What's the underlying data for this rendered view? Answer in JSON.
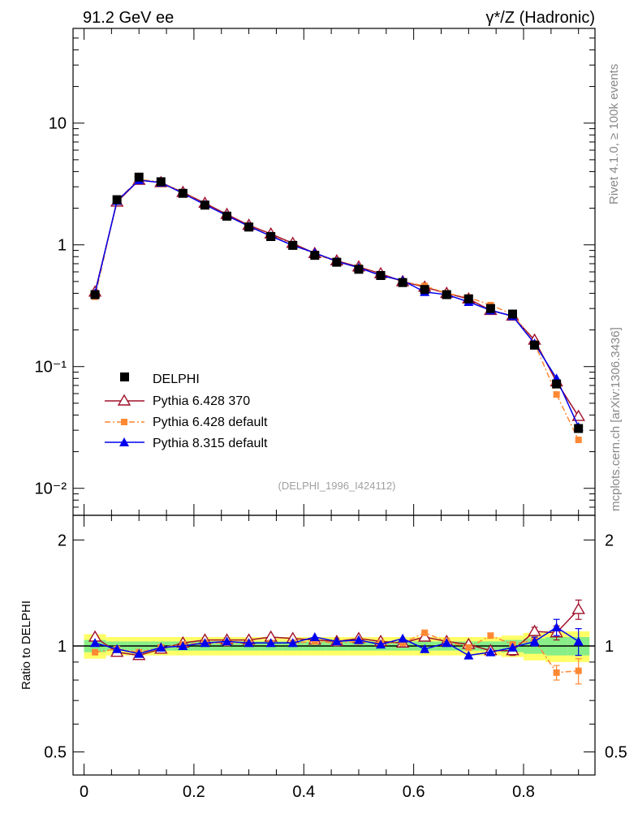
{
  "header": {
    "left_title": "91.2 GeV ee",
    "right_title": "γ*/Z (Hadronic)"
  },
  "side": {
    "rivet": "Rivet 4.1.0, ≥ 100k events",
    "mcplots": "mcplots.cern.ch [arXiv:1306.3436]"
  },
  "analysis_ref": "(DELPHI_1996_I424112)",
  "ratio_ylabel": "Ratio to DELPHI",
  "colors": {
    "data": "#000000",
    "py6_370": "#a0102a",
    "py6_default": "#ff8833",
    "py8_default": "#0000ee",
    "band_inner": "#88ee88",
    "band_outer": "#ffff66"
  },
  "chart_data": [
    {
      "type": "line",
      "panel": "main",
      "yscale": "log",
      "xlim": [
        -0.02,
        0.93
      ],
      "ylim": [
        0.006,
        60
      ],
      "y_ticks": [
        {
          "value": 10,
          "label": "10"
        },
        {
          "value": 1,
          "label": "1"
        },
        {
          "value": 0.1,
          "label": "10⁻¹"
        },
        {
          "value": 0.01,
          "label": "10⁻²"
        }
      ],
      "x": [
        0.02,
        0.06,
        0.1,
        0.14,
        0.18,
        0.22,
        0.26,
        0.3,
        0.34,
        0.38,
        0.42,
        0.46,
        0.5,
        0.54,
        0.58,
        0.62,
        0.66,
        0.7,
        0.74,
        0.78,
        0.82,
        0.86,
        0.9
      ],
      "series": [
        {
          "name": "DELPHI",
          "key": "data",
          "marker": "square",
          "values": [
            0.39,
            2.35,
            3.6,
            3.3,
            2.65,
            2.12,
            1.72,
            1.4,
            1.17,
            0.99,
            0.82,
            0.72,
            0.63,
            0.56,
            0.49,
            0.43,
            0.39,
            0.36,
            0.3,
            0.27,
            0.15,
            0.072,
            0.031
          ]
        },
        {
          "name": "Pythia 6.428 370",
          "key": "py6_370",
          "marker": "open-triangle",
          "dash": "",
          "values": [
            0.41,
            2.25,
            3.4,
            3.25,
            2.7,
            2.2,
            1.78,
            1.45,
            1.23,
            1.03,
            0.85,
            0.74,
            0.66,
            0.58,
            0.5,
            0.45,
            0.4,
            0.36,
            0.29,
            0.26,
            0.165,
            0.075,
            0.039
          ]
        },
        {
          "name": "Pythia 6.428 default",
          "key": "py6_default",
          "marker": "filled-square-small",
          "dash": "7,3,2,3",
          "values": [
            0.375,
            2.3,
            3.45,
            3.28,
            2.68,
            2.15,
            1.74,
            1.42,
            1.19,
            1.01,
            0.84,
            0.73,
            0.65,
            0.57,
            0.5,
            0.46,
            0.4,
            0.37,
            0.32,
            0.27,
            0.155,
            0.059,
            0.025
          ]
        },
        {
          "name": "Pythia 8.315 default",
          "key": "py8_default",
          "marker": "filled-triangle",
          "dash": "",
          "values": [
            0.4,
            2.3,
            3.4,
            3.25,
            2.65,
            2.14,
            1.74,
            1.42,
            1.18,
            0.99,
            0.86,
            0.73,
            0.65,
            0.56,
            0.51,
            0.41,
            0.39,
            0.34,
            0.29,
            0.26,
            0.155,
            0.08,
            0.032
          ]
        }
      ]
    },
    {
      "type": "line",
      "panel": "ratio",
      "yscale": "log",
      "xlabel": "",
      "ylabel": "Ratio to DELPHI",
      "xlim": [
        -0.02,
        0.93
      ],
      "ylim": [
        0.43,
        2.35
      ],
      "x_ticks": [
        {
          "value": 0,
          "label": "0"
        },
        {
          "value": 0.2,
          "label": "0.2"
        },
        {
          "value": 0.4,
          "label": "0.4"
        },
        {
          "value": 0.6,
          "label": "0.6"
        },
        {
          "value": 0.8,
          "label": "0.8"
        }
      ],
      "y_ticks": [
        {
          "value": 2,
          "label": "2"
        },
        {
          "value": 1,
          "label": "1"
        },
        {
          "value": 0.5,
          "label": "0.5"
        }
      ],
      "x": [
        0.02,
        0.06,
        0.1,
        0.14,
        0.18,
        0.22,
        0.26,
        0.3,
        0.34,
        0.38,
        0.42,
        0.46,
        0.5,
        0.54,
        0.58,
        0.62,
        0.66,
        0.7,
        0.74,
        0.78,
        0.82,
        0.86,
        0.9
      ],
      "band_inner": [
        0.04,
        0.03,
        0.03,
        0.03,
        0.03,
        0.03,
        0.03,
        0.03,
        0.03,
        0.03,
        0.03,
        0.03,
        0.03,
        0.03,
        0.03,
        0.03,
        0.03,
        0.03,
        0.03,
        0.04,
        0.05,
        0.06,
        0.06
      ],
      "band_outer": [
        0.08,
        0.06,
        0.06,
        0.06,
        0.06,
        0.06,
        0.06,
        0.06,
        0.06,
        0.06,
        0.06,
        0.06,
        0.06,
        0.06,
        0.06,
        0.06,
        0.06,
        0.06,
        0.06,
        0.07,
        0.09,
        0.1,
        0.1
      ],
      "series": [
        {
          "name": "Pythia 6.428 370",
          "key": "py6_370",
          "marker": "open-triangle",
          "dash": "",
          "values": [
            1.06,
            0.96,
            0.94,
            0.98,
            1.02,
            1.04,
            1.04,
            1.04,
            1.06,
            1.05,
            1.04,
            1.03,
            1.05,
            1.03,
            1.02,
            1.06,
            1.03,
            1.01,
            0.97,
            0.97,
            1.1,
            1.09,
            1.27
          ],
          "errors": [
            0,
            0,
            0,
            0,
            0,
            0,
            0,
            0,
            0,
            0,
            0,
            0,
            0,
            0,
            0,
            0,
            0,
            0,
            0,
            0.03,
            0.03,
            0.05,
            0.08
          ]
        },
        {
          "name": "Pythia 6.428 default",
          "key": "py6_default",
          "marker": "filled-square-small",
          "dash": "7,3,2,3",
          "values": [
            0.96,
            0.98,
            0.96,
            0.99,
            1.01,
            1.02,
            1.02,
            1.02,
            1.02,
            1.02,
            1.03,
            1.02,
            1.03,
            1.02,
            1.02,
            1.09,
            1.03,
            0.99,
            1.07,
            1.01,
            1.04,
            0.84,
            0.85
          ],
          "errors": [
            0,
            0,
            0,
            0,
            0,
            0,
            0,
            0,
            0,
            0,
            0,
            0,
            0,
            0,
            0,
            0,
            0,
            0,
            0,
            0,
            0,
            0.04,
            0.07
          ]
        },
        {
          "name": "Pythia 8.315 default",
          "key": "py8_default",
          "marker": "filled-triangle",
          "dash": "",
          "values": [
            1.02,
            0.98,
            0.95,
            0.99,
            1.0,
            1.02,
            1.03,
            1.02,
            1.02,
            1.02,
            1.06,
            1.03,
            1.04,
            1.01,
            1.05,
            0.98,
            1.02,
            0.94,
            0.96,
            0.99,
            1.03,
            1.13,
            1.03
          ],
          "errors": [
            0,
            0,
            0,
            0,
            0,
            0,
            0,
            0,
            0,
            0,
            0,
            0,
            0,
            0,
            0,
            0,
            0,
            0,
            0,
            0,
            0.03,
            0.06,
            0.09
          ]
        }
      ]
    }
  ]
}
